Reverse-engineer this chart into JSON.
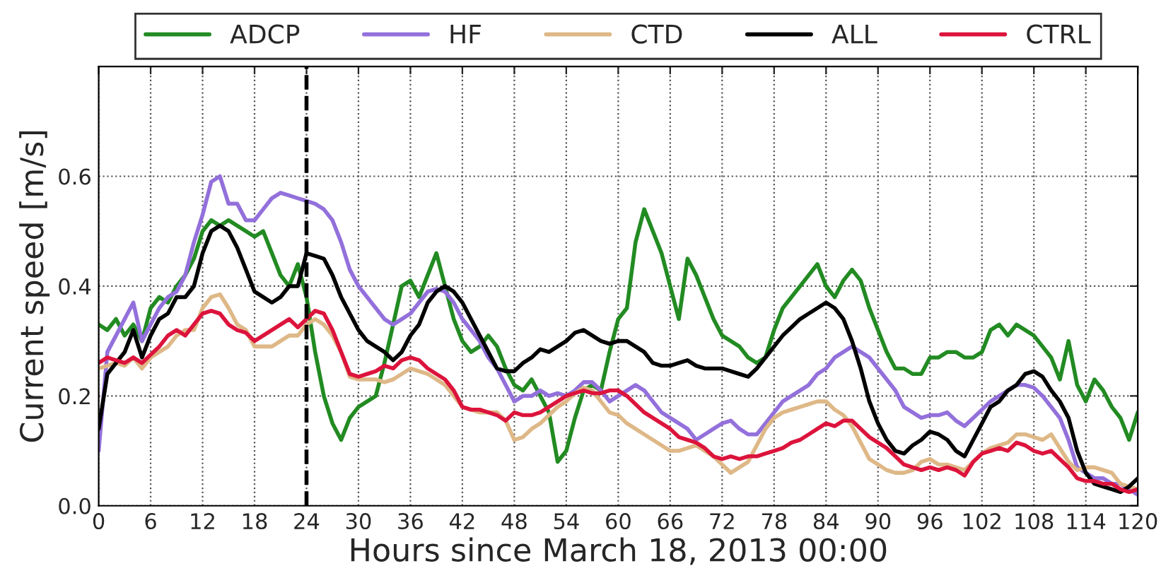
{
  "chart_data": {
    "type": "line",
    "xlabel": "Hours since March 18, 2013 00:00",
    "ylabel": "Current speed [m/s]",
    "x": [
      0,
      1,
      2,
      3,
      4,
      5,
      6,
      7,
      8,
      9,
      10,
      11,
      12,
      13,
      14,
      15,
      16,
      17,
      18,
      19,
      20,
      21,
      22,
      23,
      24,
      25,
      26,
      27,
      28,
      29,
      30,
      31,
      32,
      33,
      34,
      35,
      36,
      37,
      38,
      39,
      40,
      41,
      42,
      43,
      44,
      45,
      46,
      47,
      48,
      49,
      50,
      51,
      52,
      53,
      54,
      55,
      56,
      57,
      58,
      59,
      60,
      61,
      62,
      63,
      64,
      65,
      66,
      67,
      68,
      69,
      70,
      71,
      72,
      73,
      74,
      75,
      76,
      77,
      78,
      79,
      80,
      81,
      82,
      83,
      84,
      85,
      86,
      87,
      88,
      89,
      90,
      91,
      92,
      93,
      94,
      95,
      96,
      97,
      98,
      99,
      100,
      101,
      102,
      103,
      104,
      105,
      106,
      107,
      108,
      109,
      110,
      111,
      112,
      113,
      114,
      115,
      116,
      117,
      118,
      119,
      120
    ],
    "series": [
      {
        "name": "ADCP",
        "color": "#228b22",
        "values": [
          0.33,
          0.32,
          0.34,
          0.31,
          0.33,
          0.3,
          0.36,
          0.38,
          0.37,
          0.4,
          0.42,
          0.45,
          0.5,
          0.52,
          0.51,
          0.52,
          0.51,
          0.5,
          0.49,
          0.5,
          0.46,
          0.42,
          0.4,
          0.44,
          0.38,
          0.28,
          0.2,
          0.15,
          0.12,
          0.16,
          0.18,
          0.19,
          0.2,
          0.26,
          0.33,
          0.4,
          0.41,
          0.38,
          0.42,
          0.46,
          0.4,
          0.34,
          0.3,
          0.28,
          0.29,
          0.31,
          0.29,
          0.25,
          0.22,
          0.21,
          0.23,
          0.2,
          0.17,
          0.08,
          0.1,
          0.16,
          0.21,
          0.22,
          0.21,
          0.28,
          0.34,
          0.36,
          0.48,
          0.54,
          0.5,
          0.46,
          0.4,
          0.34,
          0.45,
          0.42,
          0.38,
          0.34,
          0.31,
          0.3,
          0.29,
          0.27,
          0.26,
          0.27,
          0.32,
          0.36,
          0.38,
          0.4,
          0.42,
          0.44,
          0.4,
          0.38,
          0.41,
          0.43,
          0.41,
          0.36,
          0.32,
          0.28,
          0.25,
          0.25,
          0.24,
          0.24,
          0.27,
          0.27,
          0.28,
          0.28,
          0.27,
          0.27,
          0.28,
          0.32,
          0.33,
          0.31,
          0.33,
          0.32,
          0.31,
          0.29,
          0.27,
          0.23,
          0.3,
          0.22,
          0.19,
          0.23,
          0.21,
          0.18,
          0.16,
          0.12,
          0.17
        ]
      },
      {
        "name": "HF",
        "color": "#9370db",
        "values": [
          0.1,
          0.28,
          0.31,
          0.34,
          0.37,
          0.3,
          0.33,
          0.36,
          0.38,
          0.39,
          0.42,
          0.48,
          0.53,
          0.59,
          0.6,
          0.55,
          0.55,
          0.52,
          0.52,
          0.54,
          0.56,
          0.57,
          0.565,
          0.56,
          0.555,
          0.55,
          0.54,
          0.52,
          0.48,
          0.43,
          0.4,
          0.38,
          0.36,
          0.34,
          0.33,
          0.34,
          0.35,
          0.37,
          0.39,
          0.395,
          0.39,
          0.37,
          0.34,
          0.32,
          0.3,
          0.27,
          0.25,
          0.22,
          0.19,
          0.2,
          0.2,
          0.21,
          0.2,
          0.205,
          0.2,
          0.21,
          0.225,
          0.225,
          0.21,
          0.19,
          0.2,
          0.21,
          0.22,
          0.21,
          0.19,
          0.17,
          0.16,
          0.15,
          0.14,
          0.12,
          0.13,
          0.14,
          0.15,
          0.155,
          0.14,
          0.13,
          0.13,
          0.15,
          0.17,
          0.19,
          0.2,
          0.21,
          0.22,
          0.24,
          0.25,
          0.27,
          0.28,
          0.29,
          0.28,
          0.27,
          0.25,
          0.23,
          0.21,
          0.18,
          0.17,
          0.16,
          0.165,
          0.165,
          0.17,
          0.155,
          0.145,
          0.16,
          0.175,
          0.19,
          0.2,
          0.21,
          0.22,
          0.22,
          0.215,
          0.2,
          0.18,
          0.16,
          0.12,
          0.07,
          0.06,
          0.05,
          0.05,
          0.04,
          0.04,
          0.03,
          0.02
        ]
      },
      {
        "name": "CTD",
        "color": "#deb887",
        "values": [
          0.25,
          0.255,
          0.26,
          0.255,
          0.27,
          0.25,
          0.27,
          0.28,
          0.29,
          0.31,
          0.32,
          0.32,
          0.36,
          0.38,
          0.385,
          0.36,
          0.33,
          0.32,
          0.29,
          0.29,
          0.29,
          0.3,
          0.31,
          0.31,
          0.33,
          0.34,
          0.33,
          0.31,
          0.28,
          0.235,
          0.23,
          0.23,
          0.23,
          0.225,
          0.23,
          0.24,
          0.25,
          0.245,
          0.24,
          0.23,
          0.22,
          0.2,
          0.18,
          0.175,
          0.17,
          0.17,
          0.17,
          0.155,
          0.12,
          0.125,
          0.14,
          0.15,
          0.165,
          0.18,
          0.19,
          0.205,
          0.215,
          0.21,
          0.19,
          0.17,
          0.165,
          0.15,
          0.14,
          0.13,
          0.12,
          0.11,
          0.1,
          0.1,
          0.105,
          0.11,
          0.1,
          0.09,
          0.075,
          0.06,
          0.07,
          0.08,
          0.11,
          0.14,
          0.16,
          0.17,
          0.175,
          0.18,
          0.185,
          0.19,
          0.19,
          0.175,
          0.165,
          0.145,
          0.115,
          0.085,
          0.075,
          0.065,
          0.06,
          0.06,
          0.065,
          0.08,
          0.085,
          0.075,
          0.075,
          0.07,
          0.065,
          0.08,
          0.095,
          0.105,
          0.11,
          0.115,
          0.13,
          0.13,
          0.125,
          0.12,
          0.13,
          0.105,
          0.08,
          0.065,
          0.07,
          0.07,
          0.065,
          0.06,
          0.04,
          0.035,
          0.03
        ]
      },
      {
        "name": "ALL",
        "color": "#000000",
        "values": [
          0.14,
          0.24,
          0.26,
          0.28,
          0.32,
          0.27,
          0.31,
          0.34,
          0.35,
          0.38,
          0.38,
          0.4,
          0.46,
          0.5,
          0.51,
          0.5,
          0.47,
          0.43,
          0.39,
          0.38,
          0.37,
          0.38,
          0.4,
          0.4,
          0.46,
          0.455,
          0.45,
          0.42,
          0.38,
          0.35,
          0.32,
          0.3,
          0.29,
          0.28,
          0.265,
          0.28,
          0.31,
          0.33,
          0.37,
          0.39,
          0.4,
          0.39,
          0.37,
          0.34,
          0.31,
          0.28,
          0.25,
          0.245,
          0.245,
          0.26,
          0.27,
          0.285,
          0.28,
          0.29,
          0.3,
          0.315,
          0.32,
          0.31,
          0.3,
          0.295,
          0.3,
          0.3,
          0.29,
          0.28,
          0.26,
          0.255,
          0.255,
          0.26,
          0.265,
          0.255,
          0.25,
          0.25,
          0.25,
          0.245,
          0.24,
          0.235,
          0.25,
          0.27,
          0.29,
          0.31,
          0.325,
          0.34,
          0.35,
          0.36,
          0.37,
          0.36,
          0.34,
          0.3,
          0.25,
          0.19,
          0.15,
          0.12,
          0.1,
          0.095,
          0.11,
          0.12,
          0.135,
          0.13,
          0.12,
          0.1,
          0.09,
          0.12,
          0.15,
          0.18,
          0.19,
          0.21,
          0.22,
          0.24,
          0.245,
          0.235,
          0.21,
          0.19,
          0.16,
          0.1,
          0.06,
          0.04,
          0.035,
          0.03,
          0.025,
          0.035,
          0.05
        ]
      },
      {
        "name": "CTRL",
        "color": "#dc143c",
        "values": [
          0.26,
          0.27,
          0.265,
          0.26,
          0.27,
          0.26,
          0.275,
          0.29,
          0.31,
          0.32,
          0.31,
          0.33,
          0.35,
          0.355,
          0.35,
          0.33,
          0.32,
          0.315,
          0.3,
          0.31,
          0.32,
          0.33,
          0.34,
          0.325,
          0.34,
          0.355,
          0.35,
          0.32,
          0.28,
          0.24,
          0.235,
          0.24,
          0.245,
          0.255,
          0.25,
          0.265,
          0.27,
          0.265,
          0.25,
          0.24,
          0.23,
          0.21,
          0.18,
          0.175,
          0.175,
          0.17,
          0.165,
          0.155,
          0.17,
          0.165,
          0.165,
          0.17,
          0.18,
          0.19,
          0.2,
          0.205,
          0.21,
          0.205,
          0.205,
          0.21,
          0.21,
          0.2,
          0.185,
          0.17,
          0.16,
          0.15,
          0.14,
          0.125,
          0.12,
          0.115,
          0.105,
          0.09,
          0.085,
          0.09,
          0.085,
          0.09,
          0.09,
          0.095,
          0.1,
          0.105,
          0.115,
          0.12,
          0.13,
          0.14,
          0.15,
          0.145,
          0.155,
          0.155,
          0.14,
          0.125,
          0.115,
          0.105,
          0.09,
          0.075,
          0.07,
          0.065,
          0.07,
          0.065,
          0.07,
          0.065,
          0.055,
          0.08,
          0.095,
          0.1,
          0.105,
          0.1,
          0.115,
          0.11,
          0.1,
          0.095,
          0.1,
          0.085,
          0.07,
          0.05,
          0.045,
          0.045,
          0.04,
          0.04,
          0.03,
          0.025,
          0.03
        ]
      }
    ],
    "xlim": [
      0,
      120
    ],
    "xticks": [
      0,
      6,
      12,
      18,
      24,
      30,
      36,
      42,
      48,
      54,
      60,
      66,
      72,
      78,
      84,
      90,
      96,
      102,
      108,
      114,
      120
    ],
    "ylim": [
      0,
      0.8
    ],
    "yticks": [
      {
        "value": 0,
        "label": "0.0"
      },
      {
        "value": 0.2,
        "label": "0.2"
      },
      {
        "value": 0.4,
        "label": "0.4"
      },
      {
        "value": 0.6,
        "label": "0.6"
      }
    ],
    "ref_lines": [
      {
        "axis": "x",
        "value": 24,
        "color": "#000000",
        "line_style": "dashed"
      }
    ],
    "grid": true,
    "legend": "top",
    "line_style": "solid"
  }
}
